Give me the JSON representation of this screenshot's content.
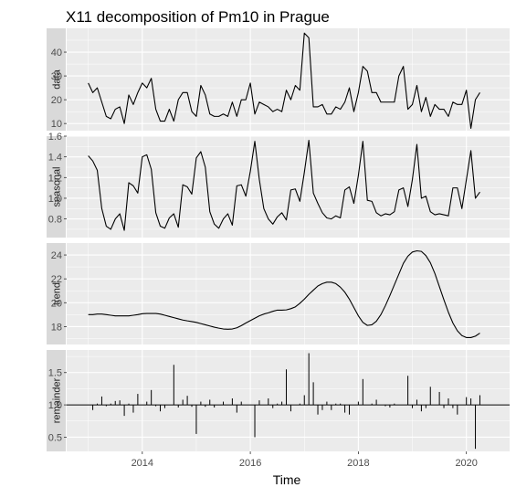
{
  "chart_data": {
    "type": "line",
    "title": "X11 decomposition of Pm10 in Prague",
    "xlabel": "Time",
    "x_range": [
      2012.6,
      2020.8
    ],
    "x_ticks": [
      2014,
      2016,
      2018,
      2020
    ],
    "x_tick_labels": [
      "2014",
      "2016",
      "2018",
      "2020"
    ],
    "grid": true,
    "colors": {
      "panel": "#ebebeb",
      "strip": "#d9d9d9",
      "grid": "#ffffff",
      "line": "#000000",
      "tick_text": "#4d4d4d"
    },
    "x": [
      2013.0,
      2013.0833,
      2013.1667,
      2013.25,
      2013.3333,
      2013.4167,
      2013.5,
      2013.5833,
      2013.6667,
      2013.75,
      2013.8333,
      2013.9167,
      2014.0,
      2014.0833,
      2014.1667,
      2014.25,
      2014.3333,
      2014.4167,
      2014.5,
      2014.5833,
      2014.6667,
      2014.75,
      2014.8333,
      2014.9167,
      2015.0,
      2015.0833,
      2015.1667,
      2015.25,
      2015.3333,
      2015.4167,
      2015.5,
      2015.5833,
      2015.6667,
      2015.75,
      2015.8333,
      2015.9167,
      2016.0,
      2016.0833,
      2016.1667,
      2016.25,
      2016.3333,
      2016.4167,
      2016.5,
      2016.5833,
      2016.6667,
      2016.75,
      2016.8333,
      2016.9167,
      2017.0,
      2017.0833,
      2017.1667,
      2017.25,
      2017.3333,
      2017.4167,
      2017.5,
      2017.5833,
      2017.6667,
      2017.75,
      2017.8333,
      2017.9167,
      2018.0,
      2018.0833,
      2018.1667,
      2018.25,
      2018.3333,
      2018.4167,
      2018.5,
      2018.5833,
      2018.6667,
      2018.75,
      2018.8333,
      2018.9167,
      2019.0,
      2019.0833,
      2019.1667,
      2019.25,
      2019.3333,
      2019.4167,
      2019.5,
      2019.5833,
      2019.6667,
      2019.75,
      2019.8333,
      2019.9167,
      2020.0,
      2020.0833,
      2020.1667,
      2020.25
    ],
    "panels": [
      {
        "label": "data",
        "ylim": [
          7,
          50
        ],
        "y_ticks": [
          10,
          20,
          30,
          40
        ],
        "y_tick_labels": [
          "10",
          "20",
          "30",
          "40"
        ],
        "style": "line",
        "values": [
          27,
          23,
          25,
          19,
          13,
          12,
          16,
          17,
          10,
          22,
          18,
          23,
          27,
          25,
          29,
          16,
          11,
          11,
          16,
          11,
          20,
          23,
          23,
          15,
          13,
          26,
          22,
          14,
          13,
          13,
          14,
          13,
          19,
          13,
          20,
          20,
          27,
          14,
          19,
          18,
          17,
          15,
          16,
          15,
          24,
          20,
          26,
          24,
          48,
          46,
          17,
          17,
          18,
          14,
          14,
          17,
          16,
          19,
          25,
          15,
          23,
          34,
          32,
          23,
          23,
          19,
          19,
          19,
          19,
          30,
          34,
          16,
          18,
          26,
          15,
          21,
          13,
          18,
          16,
          16,
          13,
          19,
          18,
          18,
          24,
          8,
          20,
          23
        ]
      },
      {
        "label": "seasonal",
        "ylim": [
          0.62,
          1.6
        ],
        "y_ticks": [
          0.8,
          1.0,
          1.2,
          1.4,
          1.6
        ],
        "y_tick_labels": [
          "0.8",
          "1.0",
          "1.2",
          "1.4",
          "1.6"
        ],
        "style": "line",
        "values": [
          1.41,
          1.36,
          1.27,
          0.9,
          0.73,
          0.7,
          0.8,
          0.85,
          0.69,
          1.15,
          1.12,
          1.05,
          1.4,
          1.42,
          1.28,
          0.86,
          0.73,
          0.71,
          0.81,
          0.85,
          0.72,
          1.13,
          1.11,
          1.04,
          1.39,
          1.45,
          1.3,
          0.87,
          0.75,
          0.71,
          0.8,
          0.85,
          0.74,
          1.12,
          1.13,
          1.02,
          1.26,
          1.55,
          1.18,
          0.9,
          0.8,
          0.75,
          0.82,
          0.86,
          0.79,
          1.08,
          1.09,
          0.97,
          1.25,
          1.56,
          1.05,
          0.95,
          0.86,
          0.81,
          0.8,
          0.83,
          0.81,
          1.08,
          1.11,
          0.95,
          1.22,
          1.55,
          0.98,
          0.97,
          0.86,
          0.83,
          0.85,
          0.84,
          0.87,
          1.08,
          1.1,
          0.92,
          1.18,
          1.52,
          1.0,
          1.02,
          0.87,
          0.84,
          0.85,
          0.84,
          0.83,
          1.1,
          1.1,
          0.9,
          1.18,
          1.46,
          1.0,
          1.06
        ]
      },
      {
        "label": "trend",
        "ylim": [
          16.5,
          25
        ],
        "y_ticks": [
          18,
          20,
          22,
          24
        ],
        "y_tick_labels": [
          "18",
          "20",
          "22",
          "24"
        ],
        "style": "line",
        "values": [
          19.0,
          19.0,
          19.05,
          19.05,
          19.0,
          18.95,
          18.9,
          18.9,
          18.9,
          18.9,
          18.95,
          19.0,
          19.08,
          19.1,
          19.1,
          19.1,
          19.05,
          18.95,
          18.85,
          18.75,
          18.65,
          18.55,
          18.48,
          18.42,
          18.35,
          18.25,
          18.15,
          18.05,
          17.95,
          17.87,
          17.8,
          17.78,
          17.8,
          17.9,
          18.08,
          18.3,
          18.5,
          18.7,
          18.9,
          19.05,
          19.15,
          19.28,
          19.38,
          19.38,
          19.4,
          19.5,
          19.65,
          19.95,
          20.3,
          20.7,
          21.05,
          21.4,
          21.6,
          21.72,
          21.72,
          21.6,
          21.3,
          20.88,
          20.3,
          19.6,
          18.9,
          18.35,
          18.1,
          18.15,
          18.45,
          19.0,
          19.75,
          20.6,
          21.5,
          22.4,
          23.3,
          23.9,
          24.25,
          24.35,
          24.3,
          23.95,
          23.35,
          22.45,
          21.35,
          20.25,
          19.2,
          18.3,
          17.65,
          17.25,
          17.08,
          17.08,
          17.2,
          17.45
        ]
      },
      {
        "label": "remainder",
        "ylim": [
          0.28,
          1.85
        ],
        "y_ticks": [
          0.5,
          1.0,
          1.5
        ],
        "y_tick_labels": [
          "0.5",
          "1.0",
          "1.5"
        ],
        "style": "bar",
        "baseline": 1.0,
        "values": [
          1.0,
          0.92,
          1.02,
          1.13,
          0.98,
          1.02,
          1.06,
          1.07,
          0.83,
          1.02,
          0.88,
          1.17,
          1.0,
          1.05,
          1.23,
          0.98,
          0.9,
          0.95,
          1.0,
          1.62,
          0.96,
          1.08,
          1.14,
          0.97,
          0.55,
          1.05,
          0.97,
          1.08,
          0.96,
          1.0,
          1.05,
          1.0,
          1.1,
          0.88,
          1.05,
          1.0,
          1.0,
          0.5,
          1.07,
          1.0,
          1.1,
          0.95,
          1.02,
          1.05,
          1.55,
          0.9,
          1.0,
          1.02,
          1.15,
          1.8,
          1.35,
          0.85,
          0.92,
          1.05,
          0.92,
          1.02,
          1.02,
          0.88,
          0.85,
          1.0,
          1.05,
          1.4,
          1.0,
          1.02,
          1.08,
          1.0,
          0.98,
          0.96,
          1.02,
          1.0,
          1.0,
          1.45,
          0.95,
          1.08,
          0.9,
          0.95,
          1.28,
          1.0,
          1.2,
          0.95,
          1.1,
          0.95,
          0.85,
          1.0,
          1.12,
          1.1,
          0.32,
          1.15
        ]
      }
    ]
  }
}
